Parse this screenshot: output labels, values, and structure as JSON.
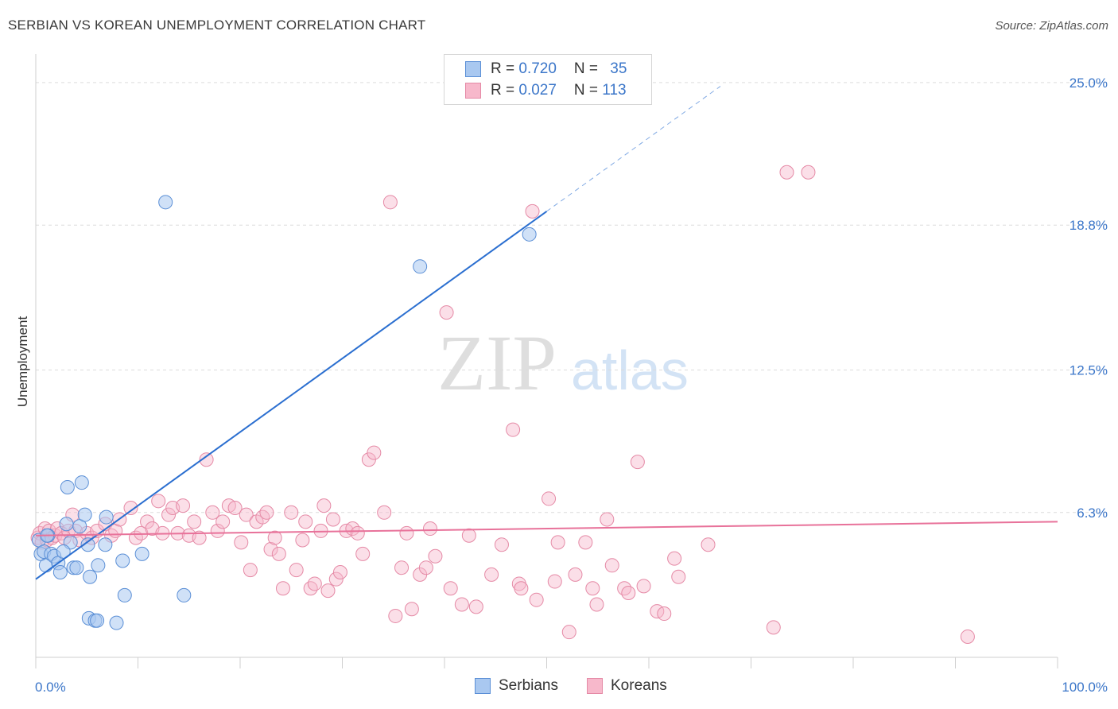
{
  "title": "SERBIAN VS KOREAN UNEMPLOYMENT CORRELATION CHART",
  "source": "Source: ZipAtlas.com",
  "watermark": {
    "zip": "ZIP",
    "atlas": "atlas"
  },
  "legend": {
    "rows": [
      {
        "r_label": "R = ",
        "r_value": "0.720",
        "n_label": "N = ",
        "n_value": "35"
      },
      {
        "r_label": "R = ",
        "r_value": "0.027",
        "n_label": "N = ",
        "n_value": "113"
      }
    ]
  },
  "colors": {
    "serbian_fill": "#a9c8f0",
    "serbian_stroke": "#5b8fd6",
    "serbian_line": "#2b6fd0",
    "korean_fill": "#f7b8cb",
    "korean_stroke": "#e58aa6",
    "korean_line": "#e8729a",
    "tick_label": "#3b76c9",
    "grid": "#dcdcdc"
  },
  "chart_data": {
    "type": "scatter",
    "title": "SERBIAN VS KOREAN UNEMPLOYMENT CORRELATION CHART",
    "xlabel": "",
    "ylabel": "Unemployment",
    "xlim": [
      0,
      100
    ],
    "ylim": [
      0,
      26
    ],
    "x_tick_labels": [
      "0.0%",
      "100.0%"
    ],
    "y_ticks": [
      6.3,
      12.5,
      18.8,
      25.0
    ],
    "y_tick_labels": [
      "6.3%",
      "12.5%",
      "18.8%",
      "25.0%"
    ],
    "series": [
      {
        "name": "Serbians",
        "R": 0.72,
        "N": 35,
        "trend": {
          "x0": 0,
          "y0": 3.4,
          "x1": 50,
          "y1": 19.4,
          "dashed_to_x": 67
        },
        "points": [
          [
            0.3,
            5.1
          ],
          [
            0.5,
            4.5
          ],
          [
            0.8,
            4.6
          ],
          [
            1.0,
            4.0
          ],
          [
            1.2,
            5.3
          ],
          [
            1.5,
            4.5
          ],
          [
            1.8,
            4.4
          ],
          [
            2.2,
            4.1
          ],
          [
            2.4,
            3.7
          ],
          [
            3.0,
            5.8
          ],
          [
            3.1,
            7.4
          ],
          [
            3.4,
            5.0
          ],
          [
            3.7,
            3.9
          ],
          [
            4.0,
            3.9
          ],
          [
            4.3,
            5.7
          ],
          [
            4.5,
            7.6
          ],
          [
            4.8,
            6.2
          ],
          [
            5.1,
            4.9
          ],
          [
            5.2,
            1.7
          ],
          [
            5.3,
            3.5
          ],
          [
            5.8,
            1.6
          ],
          [
            6.0,
            1.6
          ],
          [
            6.1,
            4.0
          ],
          [
            6.8,
            4.9
          ],
          [
            6.9,
            6.1
          ],
          [
            7.9,
            1.5
          ],
          [
            8.5,
            4.2
          ],
          [
            8.7,
            2.7
          ],
          [
            10.4,
            4.5
          ],
          [
            12.7,
            19.8
          ],
          [
            14.5,
            2.7
          ],
          [
            37.6,
            17.0
          ],
          [
            48.3,
            18.4
          ],
          [
            1.1,
            5.3
          ],
          [
            2.7,
            4.6
          ]
        ]
      },
      {
        "name": "Koreans",
        "R": 0.027,
        "N": 113,
        "trend": {
          "x0": 0,
          "y0": 5.3,
          "x1": 100,
          "y1": 5.9
        },
        "points": [
          [
            0.2,
            5.2
          ],
          [
            0.4,
            5.4
          ],
          [
            0.6,
            5.0
          ],
          [
            0.9,
            5.6
          ],
          [
            1.1,
            5.1
          ],
          [
            1.3,
            5.5
          ],
          [
            1.6,
            5.2
          ],
          [
            1.9,
            5.3
          ],
          [
            2.1,
            5.6
          ],
          [
            2.5,
            5.4
          ],
          [
            2.8,
            5.2
          ],
          [
            3.2,
            5.5
          ],
          [
            3.6,
            6.2
          ],
          [
            3.9,
            5.5
          ],
          [
            4.3,
            5.1
          ],
          [
            5.0,
            5.4
          ],
          [
            5.5,
            5.2
          ],
          [
            6.0,
            5.5
          ],
          [
            6.8,
            5.8
          ],
          [
            7.4,
            5.3
          ],
          [
            7.8,
            5.5
          ],
          [
            8.2,
            6.0
          ],
          [
            9.3,
            6.5
          ],
          [
            9.8,
            5.2
          ],
          [
            10.3,
            5.4
          ],
          [
            10.9,
            5.9
          ],
          [
            11.4,
            5.6
          ],
          [
            12.0,
            6.8
          ],
          [
            12.4,
            5.4
          ],
          [
            13.0,
            6.2
          ],
          [
            13.4,
            6.5
          ],
          [
            13.9,
            5.4
          ],
          [
            14.4,
            6.6
          ],
          [
            15.0,
            5.3
          ],
          [
            15.5,
            5.9
          ],
          [
            16.0,
            5.2
          ],
          [
            16.7,
            8.6
          ],
          [
            17.3,
            6.3
          ],
          [
            17.8,
            5.5
          ],
          [
            18.3,
            5.9
          ],
          [
            18.9,
            6.6
          ],
          [
            19.5,
            6.5
          ],
          [
            20.1,
            5.0
          ],
          [
            20.6,
            6.2
          ],
          [
            21.0,
            3.8
          ],
          [
            21.6,
            5.9
          ],
          [
            22.2,
            6.1
          ],
          [
            22.6,
            6.3
          ],
          [
            23.0,
            4.7
          ],
          [
            23.4,
            5.2
          ],
          [
            23.8,
            4.5
          ],
          [
            24.2,
            3.0
          ],
          [
            25.0,
            6.3
          ],
          [
            25.5,
            3.8
          ],
          [
            26.1,
            5.1
          ],
          [
            26.4,
            5.9
          ],
          [
            26.9,
            3.0
          ],
          [
            27.3,
            3.2
          ],
          [
            27.9,
            5.5
          ],
          [
            28.2,
            6.6
          ],
          [
            28.6,
            2.9
          ],
          [
            29.1,
            6.0
          ],
          [
            29.4,
            3.4
          ],
          [
            29.8,
            3.7
          ],
          [
            30.4,
            5.5
          ],
          [
            31.0,
            5.6
          ],
          [
            31.5,
            5.4
          ],
          [
            32.0,
            4.5
          ],
          [
            32.6,
            8.6
          ],
          [
            33.1,
            8.9
          ],
          [
            34.1,
            6.3
          ],
          [
            34.7,
            19.8
          ],
          [
            35.2,
            1.8
          ],
          [
            35.8,
            3.9
          ],
          [
            36.3,
            5.4
          ],
          [
            36.8,
            2.1
          ],
          [
            37.6,
            3.6
          ],
          [
            38.2,
            3.9
          ],
          [
            38.6,
            5.6
          ],
          [
            39.1,
            4.4
          ],
          [
            40.2,
            15.0
          ],
          [
            40.6,
            3.0
          ],
          [
            41.7,
            2.3
          ],
          [
            42.4,
            5.3
          ],
          [
            43.1,
            2.2
          ],
          [
            44.6,
            3.6
          ],
          [
            45.6,
            4.9
          ],
          [
            46.7,
            9.9
          ],
          [
            47.3,
            3.2
          ],
          [
            47.5,
            3.0
          ],
          [
            48.6,
            19.4
          ],
          [
            49.0,
            2.5
          ],
          [
            50.2,
            6.9
          ],
          [
            50.8,
            3.3
          ],
          [
            51.1,
            5.0
          ],
          [
            52.2,
            1.1
          ],
          [
            52.8,
            3.6
          ],
          [
            53.8,
            5.0
          ],
          [
            54.5,
            3.0
          ],
          [
            54.9,
            2.3
          ],
          [
            55.9,
            6.0
          ],
          [
            56.4,
            4.0
          ],
          [
            57.6,
            3.0
          ],
          [
            58.0,
            2.8
          ],
          [
            58.9,
            8.5
          ],
          [
            59.5,
            3.1
          ],
          [
            60.8,
            2.0
          ],
          [
            61.5,
            1.9
          ],
          [
            62.5,
            4.3
          ],
          [
            62.9,
            3.5
          ],
          [
            65.8,
            4.9
          ],
          [
            72.2,
            1.3
          ],
          [
            73.5,
            21.1
          ],
          [
            75.6,
            21.1
          ],
          [
            91.2,
            0.9
          ]
        ]
      }
    ]
  },
  "bottom_legend": {
    "serbians": "Serbians",
    "koreans": "Koreans"
  }
}
